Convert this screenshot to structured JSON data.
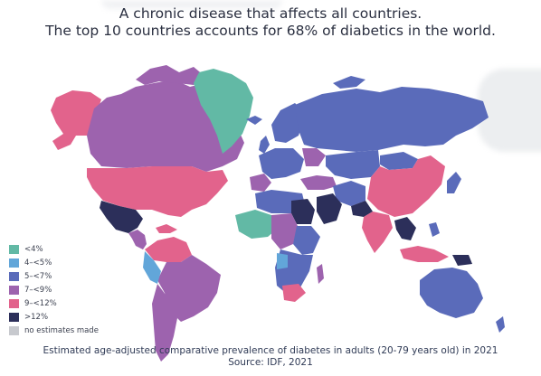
{
  "title": {
    "line1": "A chronic disease that affects all countries.",
    "line2": "The top 10 countries accounts for 68% of diabetics in the world."
  },
  "legend": {
    "items": [
      {
        "label": "<4%",
        "color": "#62b9a5"
      },
      {
        "label": "4–<5%",
        "color": "#62a6d9"
      },
      {
        "label": "5–<7%",
        "color": "#5a6bba"
      },
      {
        "label": "7–<9%",
        "color": "#9d63ae"
      },
      {
        "label": "9–<12%",
        "color": "#e2638c"
      },
      {
        "label": ">12%",
        "color": "#2c2f5a"
      },
      {
        "label": "no estimates made",
        "color": "#c7c9ce"
      }
    ]
  },
  "caption": {
    "line1": "Estimated age-adjusted comparative prevalence of diabetes in adults (20-79 years old) in 2021",
    "line2": "Source: IDF, 2021"
  }
}
